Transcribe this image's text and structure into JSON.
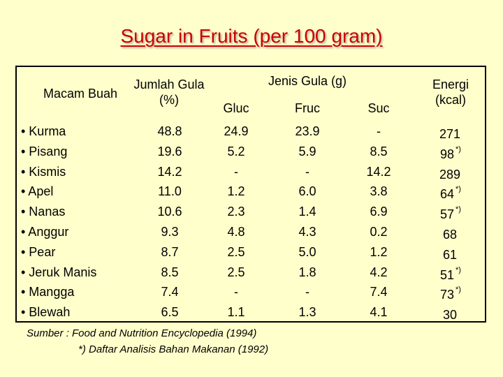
{
  "title": "Sugar in Fruits (per 100 gram)",
  "headers": {
    "fruit": "Macam Buah",
    "total": "Jumlah Gula (%)",
    "sugar_type": "Jenis Gula (g)",
    "glu": "Gluc",
    "fru": "Fruc",
    "suc": "Suc",
    "energy": "Energi (kcal)"
  },
  "rows": [
    {
      "fruit": "• Kurma",
      "total": "48.8",
      "glu": "24.9",
      "fru": "23.9",
      "suc": "-",
      "energy": "271",
      "mark": ""
    },
    {
      "fruit": "• Pisang",
      "total": "19.6",
      "glu": "5.2",
      "fru": "5.9",
      "suc": "8.5",
      "energy": "98",
      "mark": "*)"
    },
    {
      "fruit": "• Kismis",
      "total": "14.2",
      "glu": "-",
      "fru": "-",
      "suc": "14.2",
      "energy": "289",
      "mark": ""
    },
    {
      "fruit": "• Apel",
      "total": "11.0",
      "glu": "1.2",
      "fru": "6.0",
      "suc": "3.8",
      "energy": "64",
      "mark": "*)"
    },
    {
      "fruit": "• Nanas",
      "total": "10.6",
      "glu": "2.3",
      "fru": "1.4",
      "suc": "6.9",
      "energy": "57",
      "mark": "*)"
    },
    {
      "fruit": "• Anggur",
      "total": "9.3",
      "glu": "4.8",
      "fru": "4.3",
      "suc": "0.2",
      "energy": "68",
      "mark": ""
    },
    {
      "fruit": "• Pear",
      "total": "8.7",
      "glu": "2.5",
      "fru": "5.0",
      "suc": "1.2",
      "energy": "61",
      "mark": ""
    },
    {
      "fruit": "• Jeruk Manis",
      "total": "8.5",
      "glu": "2.5",
      "fru": "1.8",
      "suc": "4.2",
      "energy": "51",
      "mark": "*)"
    },
    {
      "fruit": "• Mangga",
      "total": "7.4",
      "glu": "-",
      "fru": "-",
      "suc": "7.4",
      "energy": "73",
      "mark": "*)"
    },
    {
      "fruit": "• Blewah",
      "total": "6.5",
      "glu": "1.1",
      "fru": "1.3",
      "suc": "4.1",
      "energy": "30",
      "mark": ""
    }
  ],
  "source": {
    "line1": "Sumber : Food and Nutrition Encyclopedia (1994)",
    "line2": "*) Daftar Analisis Bahan Makanan (1992)"
  }
}
